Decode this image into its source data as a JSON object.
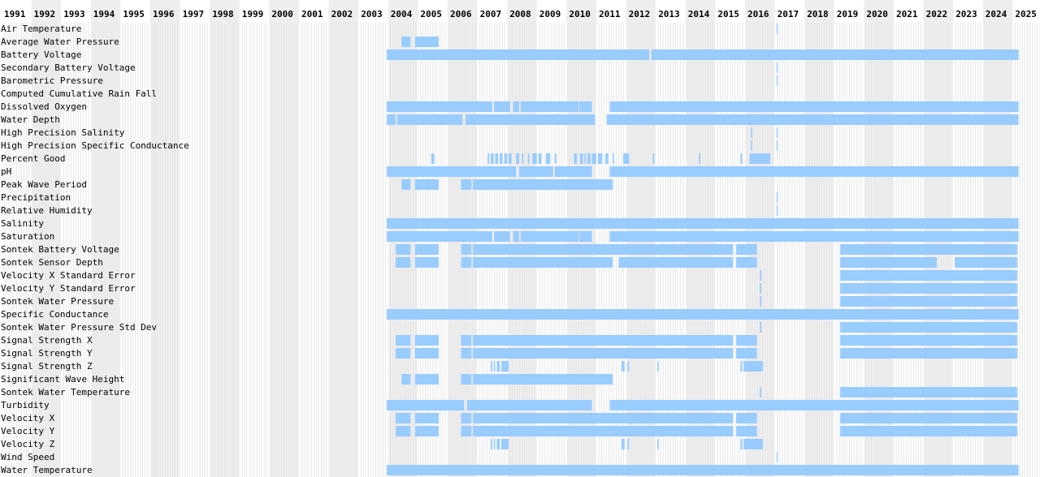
{
  "chart_data": {
    "type": "timeline",
    "x_unit": "year",
    "xlim": [
      1991,
      2025.4
    ],
    "years": [
      "1991",
      "1992",
      "1993",
      "1994",
      "1995",
      "1996",
      "1997",
      "1998",
      "1999",
      "2000",
      "2001",
      "2002",
      "2003",
      "2004",
      "2005",
      "2006",
      "2007",
      "2008",
      "2009",
      "2010",
      "2011",
      "2012",
      "2013",
      "2014",
      "2015",
      "2016",
      "2017",
      "2018",
      "2019",
      "2020",
      "2021",
      "2022",
      "2023",
      "2024",
      "2025"
    ],
    "colors": {
      "bar": "#99ccff",
      "column_alt": "#eeeeee",
      "column": "#ffffff",
      "gap": "#ffffff"
    },
    "series": [
      {
        "name": "Air Temperature",
        "segments": [
          [
            2017.06,
            2017.1
          ]
        ]
      },
      {
        "name": "Average Water Pressure",
        "segments": [
          [
            2004.45,
            2004.75
          ],
          [
            2004.9,
            2005.7
          ]
        ]
      },
      {
        "name": "Battery Voltage",
        "segments": [
          [
            2003.95,
            2012.78
          ],
          [
            2012.85,
            2025.2
          ]
        ]
      },
      {
        "name": "Secondary Battery Voltage",
        "segments": [
          [
            2017.06,
            2017.1
          ]
        ]
      },
      {
        "name": "Barometric Pressure",
        "segments": [
          [
            2017.06,
            2017.1
          ]
        ]
      },
      {
        "name": "Computed Cumulative Rain Fall",
        "segments": []
      },
      {
        "name": "Dissolved Oxygen",
        "segments": [
          [
            2003.95,
            2007.5
          ],
          [
            2007.55,
            2008.1
          ],
          [
            2008.2,
            2008.4
          ],
          [
            2008.45,
            2010.4
          ],
          [
            2010.42,
            2010.85
          ],
          [
            2011.45,
            2025.2
          ]
        ]
      },
      {
        "name": "Water Depth",
        "segments": [
          [
            2003.95,
            2004.25
          ],
          [
            2004.3,
            2006.5
          ],
          [
            2006.6,
            2010.95
          ],
          [
            2011.35,
            2025.2
          ]
        ]
      },
      {
        "name": "High Precision Salinity",
        "segments": [
          [
            2016.2,
            2016.24
          ],
          [
            2017.06,
            2017.1
          ]
        ]
      },
      {
        "name": "High Precision Specific Conductance",
        "segments": [
          [
            2016.2,
            2016.24
          ],
          [
            2017.06,
            2017.1
          ]
        ]
      },
      {
        "name": "Percent Good",
        "segments": [
          [
            2005.45,
            2005.55
          ],
          [
            2007.35,
            2007.4
          ],
          [
            2007.45,
            2007.55
          ],
          [
            2007.6,
            2007.7
          ],
          [
            2007.75,
            2007.85
          ],
          [
            2007.9,
            2008.0
          ],
          [
            2008.05,
            2008.15
          ],
          [
            2008.3,
            2008.4
          ],
          [
            2008.5,
            2008.55
          ],
          [
            2008.7,
            2008.75
          ],
          [
            2008.85,
            2009.0
          ],
          [
            2009.05,
            2009.15
          ],
          [
            2009.3,
            2009.45
          ],
          [
            2009.6,
            2009.65
          ],
          [
            2010.25,
            2010.35
          ],
          [
            2010.45,
            2010.55
          ],
          [
            2010.6,
            2010.65
          ],
          [
            2010.7,
            2010.8
          ],
          [
            2010.85,
            2011.0
          ],
          [
            2011.05,
            2011.2
          ],
          [
            2011.3,
            2011.4
          ],
          [
            2011.55,
            2011.6
          ],
          [
            2011.9,
            2012.1
          ],
          [
            2012.9,
            2012.95
          ],
          [
            2014.45,
            2014.5
          ],
          [
            2015.85,
            2015.9
          ],
          [
            2016.15,
            2016.85
          ]
        ]
      },
      {
        "name": "pH",
        "segments": [
          [
            2003.95,
            2008.3
          ],
          [
            2008.4,
            2009.55
          ],
          [
            2009.6,
            2010.85
          ],
          [
            2011.45,
            2025.2
          ]
        ]
      },
      {
        "name": "Peak Wave Period",
        "segments": [
          [
            2004.45,
            2004.75
          ],
          [
            2004.9,
            2005.7
          ],
          [
            2006.45,
            2006.8
          ],
          [
            2006.85,
            2011.55
          ]
        ]
      },
      {
        "name": "Precipitation",
        "segments": [
          [
            2017.06,
            2017.1
          ]
        ]
      },
      {
        "name": "Relative Humidity",
        "segments": [
          [
            2017.06,
            2017.1
          ]
        ]
      },
      {
        "name": "Salinity",
        "segments": [
          [
            2003.95,
            2025.2
          ]
        ]
      },
      {
        "name": "Saturation",
        "segments": [
          [
            2003.95,
            2007.5
          ],
          [
            2007.55,
            2008.1
          ],
          [
            2008.2,
            2008.4
          ],
          [
            2008.45,
            2010.4
          ],
          [
            2010.42,
            2010.85
          ],
          [
            2011.45,
            2025.2
          ]
        ]
      },
      {
        "name": "Sontek Battery Voltage",
        "segments": [
          [
            2004.25,
            2004.75
          ],
          [
            2004.9,
            2005.7
          ],
          [
            2006.45,
            2006.8
          ],
          [
            2006.85,
            2015.6
          ],
          [
            2015.7,
            2016.4
          ],
          [
            2019.2,
            2025.15
          ]
        ]
      },
      {
        "name": "Sontek Sensor Depth",
        "segments": [
          [
            2004.25,
            2004.75
          ],
          [
            2004.9,
            2005.7
          ],
          [
            2006.45,
            2006.8
          ],
          [
            2006.85,
            2011.55
          ],
          [
            2011.75,
            2015.6
          ],
          [
            2015.7,
            2016.4
          ],
          [
            2019.2,
            2022.45
          ],
          [
            2023.05,
            2025.15
          ]
        ]
      },
      {
        "name": "Velocity X Standard Error",
        "segments": [
          [
            2016.5,
            2016.55
          ],
          [
            2019.2,
            2025.15
          ]
        ]
      },
      {
        "name": "Velocity Y Standard Error",
        "segments": [
          [
            2016.5,
            2016.55
          ],
          [
            2019.2,
            2025.15
          ]
        ]
      },
      {
        "name": "Sontek Water Pressure",
        "segments": [
          [
            2016.5,
            2016.55
          ],
          [
            2019.2,
            2025.15
          ]
        ]
      },
      {
        "name": "Specific Conductance",
        "segments": [
          [
            2003.95,
            2025.2
          ]
        ]
      },
      {
        "name": "Sontek Water Pressure Std Dev",
        "segments": [
          [
            2016.5,
            2016.55
          ],
          [
            2019.2,
            2025.15
          ]
        ]
      },
      {
        "name": "Signal Strength X",
        "segments": [
          [
            2004.25,
            2004.75
          ],
          [
            2004.9,
            2005.7
          ],
          [
            2006.45,
            2006.8
          ],
          [
            2006.85,
            2015.6
          ],
          [
            2015.7,
            2016.4
          ],
          [
            2019.2,
            2025.15
          ]
        ]
      },
      {
        "name": "Signal Strength Y",
        "segments": [
          [
            2004.25,
            2004.75
          ],
          [
            2004.9,
            2005.7
          ],
          [
            2006.45,
            2006.8
          ],
          [
            2006.85,
            2015.6
          ],
          [
            2015.7,
            2016.4
          ],
          [
            2019.2,
            2025.15
          ]
        ]
      },
      {
        "name": "Signal Strength Z",
        "segments": [
          [
            2007.45,
            2007.5
          ],
          [
            2007.55,
            2007.6
          ],
          [
            2007.65,
            2007.75
          ],
          [
            2007.8,
            2008.05
          ],
          [
            2011.85,
            2011.95
          ],
          [
            2012.05,
            2012.1
          ],
          [
            2013.05,
            2013.1
          ],
          [
            2015.85,
            2015.9
          ],
          [
            2015.95,
            2016.6
          ]
        ]
      },
      {
        "name": "Significant Wave Height",
        "segments": [
          [
            2004.45,
            2004.75
          ],
          [
            2004.9,
            2005.7
          ],
          [
            2006.45,
            2006.8
          ],
          [
            2006.85,
            2011.55
          ]
        ]
      },
      {
        "name": "Sontek Water Temperature",
        "segments": [
          [
            2016.5,
            2016.55
          ],
          [
            2019.2,
            2025.15
          ]
        ]
      },
      {
        "name": "Turbidity",
        "segments": [
          [
            2003.95,
            2006.55
          ],
          [
            2006.65,
            2010.85
          ],
          [
            2011.45,
            2025.2
          ]
        ]
      },
      {
        "name": "Velocity X",
        "segments": [
          [
            2004.25,
            2004.75
          ],
          [
            2004.9,
            2005.7
          ],
          [
            2006.45,
            2006.8
          ],
          [
            2006.85,
            2015.6
          ],
          [
            2015.7,
            2016.4
          ],
          [
            2019.2,
            2025.15
          ]
        ]
      },
      {
        "name": "Velocity Y",
        "segments": [
          [
            2004.25,
            2004.75
          ],
          [
            2004.9,
            2005.7
          ],
          [
            2006.45,
            2006.8
          ],
          [
            2006.85,
            2015.6
          ],
          [
            2015.7,
            2016.4
          ],
          [
            2019.2,
            2025.15
          ]
        ]
      },
      {
        "name": "Velocity Z",
        "segments": [
          [
            2007.45,
            2007.5
          ],
          [
            2007.55,
            2007.6
          ],
          [
            2007.65,
            2007.75
          ],
          [
            2007.8,
            2008.05
          ],
          [
            2011.85,
            2011.95
          ],
          [
            2012.05,
            2012.1
          ],
          [
            2013.05,
            2013.1
          ],
          [
            2015.85,
            2015.9
          ],
          [
            2015.95,
            2016.6
          ]
        ]
      },
      {
        "name": "Wind Speed",
        "segments": [
          [
            2017.06,
            2017.1
          ]
        ]
      },
      {
        "name": "Water Temperature",
        "segments": [
          [
            2003.95,
            2025.2
          ]
        ]
      }
    ]
  }
}
